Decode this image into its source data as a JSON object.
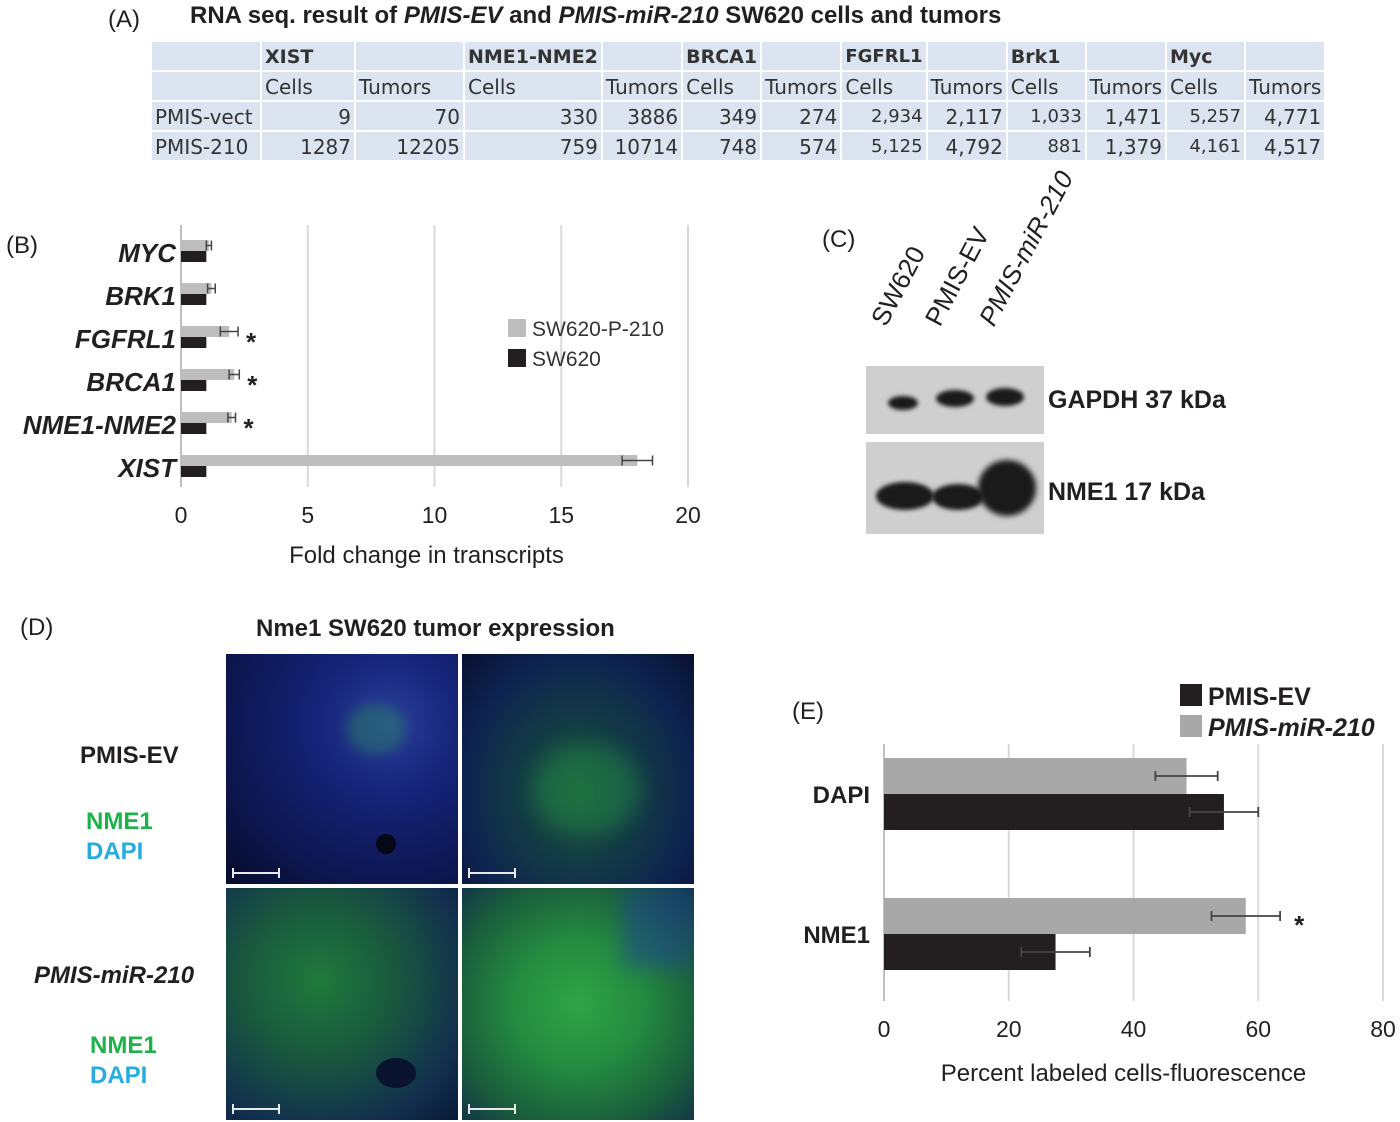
{
  "panel_a": {
    "label": "(A)",
    "title_pre": "RNA seq. result of ",
    "title_em1": "PMIS-EV",
    "title_mid": " and ",
    "title_em2": "PMIS-miR-210",
    "title_post": " SW620 cells and tumors"
  },
  "chart_data": [
    {
      "type": "table",
      "genes": [
        "XIST",
        "NME1-NME2",
        "BRCA1",
        "FGFRL1",
        "Brk1",
        "Myc"
      ],
      "subheaders": [
        "Cells",
        "Tumors"
      ],
      "rows": [
        {
          "name": "PMIS-vect",
          "values": [
            "9",
            "70",
            "330",
            "3886",
            "349",
            "274",
            "2,934",
            "2,117",
            "1,033",
            "1,471",
            "5,257",
            "4,771"
          ]
        },
        {
          "name": "PMIS-210",
          "values": [
            "1287",
            "12205",
            "759",
            "10714",
            "748",
            "574",
            "5,125",
            "4,792",
            "881",
            "1,379",
            "4,161",
            "4,517"
          ]
        }
      ]
    },
    {
      "type": "bar",
      "orientation": "horizontal",
      "panel_label": "(B)",
      "categories": [
        "MYC",
        "BRK1",
        "FGFRL1",
        "BRCA1",
        "NME1-NME2",
        "XIST"
      ],
      "series": [
        {
          "name": "SW620-P-210",
          "color": "#bdbdbd",
          "values": [
            1.1,
            1.2,
            1.9,
            2.1,
            2.0,
            18.0
          ],
          "errors": [
            0.1,
            0.15,
            0.35,
            0.2,
            0.15,
            0.6
          ]
        },
        {
          "name": "SW620",
          "color": "#231f20",
          "values": [
            1.0,
            1.0,
            1.0,
            1.0,
            1.0,
            1.0
          ]
        }
      ],
      "significance": [
        "",
        "",
        "*",
        "*",
        "*",
        ""
      ],
      "xlabel": "Fold change in transcripts",
      "xlim": [
        0,
        20
      ],
      "xticks": [
        "0",
        "5",
        "10",
        "15",
        "20"
      ],
      "grid": "vertical",
      "legend": "right"
    },
    {
      "type": "bar",
      "orientation": "horizontal",
      "panel_label": "(E)",
      "categories": [
        "DAPI",
        "NME1"
      ],
      "series": [
        {
          "name": "PMIS-EV",
          "color": "#231f20",
          "values": [
            54.5,
            27.5
          ],
          "errors": [
            5.5,
            5.5
          ]
        },
        {
          "name": "PMIS-miR-210",
          "color": "#a8a8a8",
          "values": [
            48.5,
            58.0
          ],
          "errors": [
            5.0,
            5.5
          ]
        }
      ],
      "significance": [
        "",
        "*"
      ],
      "xlabel": "Percent labeled cells-fluorescence",
      "xlim": [
        0,
        80
      ],
      "xticks": [
        "0",
        "20",
        "40",
        "60",
        "80"
      ],
      "grid": "vertical",
      "legend": "top"
    }
  ],
  "panel_c": {
    "label": "(C)",
    "lanes": [
      "SW620",
      "PMIS-EV",
      "PMIS-miR-210"
    ],
    "band1": "GAPDH 37 kDa",
    "band2": "NME1 17 kDa"
  },
  "panel_d": {
    "label": "(D)",
    "title": "Nme1 SW620 tumor expression",
    "row1_label": "PMIS-EV",
    "row2_label": "PMIS-miR-210",
    "stain1": "NME1",
    "stain2": "DAPI",
    "colors": {
      "nme1": "#1bb34a",
      "dapi": "#29abe2"
    }
  }
}
